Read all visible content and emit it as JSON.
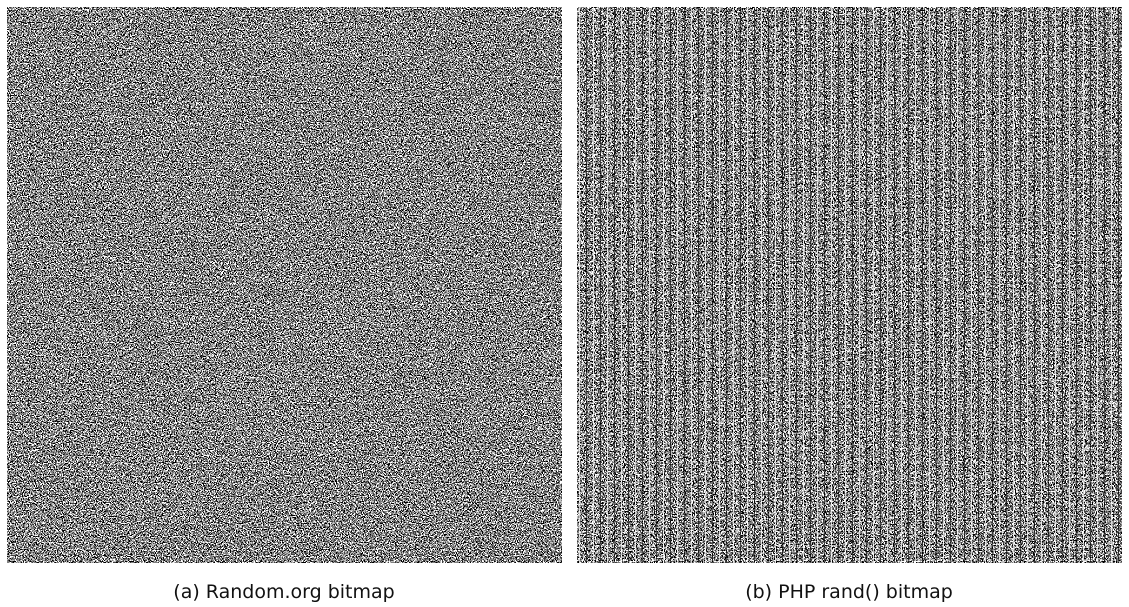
{
  "figure": {
    "panels": [
      {
        "caption": "(a) Random.org bitmap"
      },
      {
        "caption": "(b) PHP rand() bitmap"
      }
    ]
  }
}
